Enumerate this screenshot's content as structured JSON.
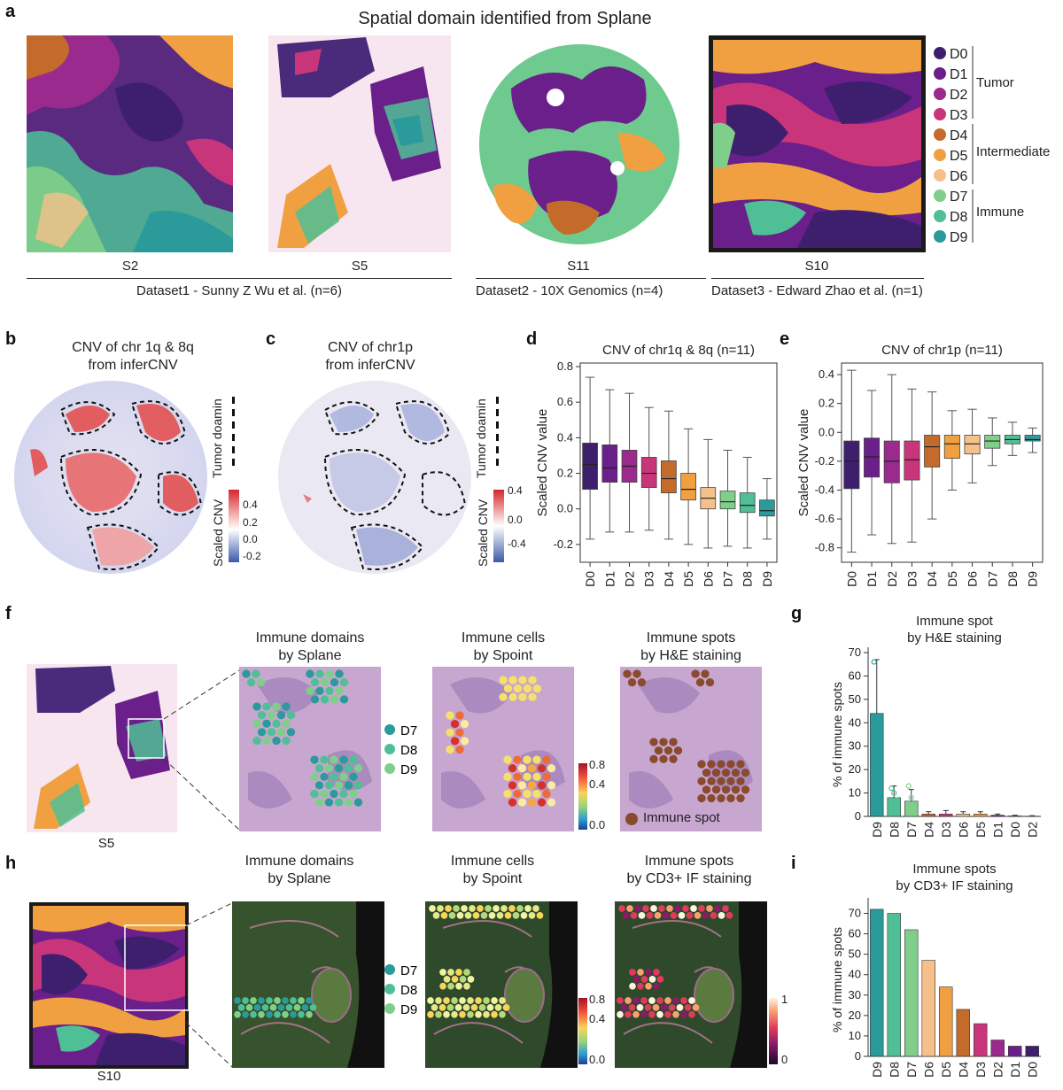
{
  "panel_a": {
    "letter": "a",
    "title": "Spatial domain identified from Splane",
    "samples": [
      "S2",
      "S5",
      "S11",
      "S10"
    ],
    "datasets": [
      "Dataset1 - Sunny Z Wu et al. (n=6)",
      "Dataset2 - 10X Genomics (n=4)",
      "Dataset3 - Edward Zhao et al. (n=1)"
    ],
    "legend": {
      "domains": [
        {
          "label": "D0",
          "color": "#3d1f6e"
        },
        {
          "label": "D1",
          "color": "#6a1f8a"
        },
        {
          "label": "D2",
          "color": "#9a2a8e"
        },
        {
          "label": "D3",
          "color": "#c9357a"
        },
        {
          "label": "D4",
          "color": "#c46a2a"
        },
        {
          "label": "D5",
          "color": "#f0a040"
        },
        {
          "label": "D6",
          "color": "#f6c08a"
        },
        {
          "label": "D7",
          "color": "#7fcf8a"
        },
        {
          "label": "D8",
          "color": "#4fbf95"
        },
        {
          "label": "D9",
          "color": "#2a9a9a"
        }
      ],
      "groups": [
        "Tumor",
        "Intermediate",
        "Immune"
      ]
    }
  },
  "panel_b": {
    "letter": "b",
    "title": "CNV of chr 1q & 8q\nfrom inferCNV",
    "tumor_label": "Tumor doamin",
    "scale_label": "Scaled CNV",
    "scale_ticks": [
      "0.4",
      "0.2",
      "0.0",
      "-0.2"
    ]
  },
  "panel_c": {
    "letter": "c",
    "title": "CNV of chr1p\nfrom inferCNV",
    "tumor_label": "Tumor doamin",
    "scale_label": "Scaled CNV",
    "scale_ticks": [
      "0.4",
      "0.0",
      "-0.4"
    ]
  },
  "panel_f": {
    "letter": "f",
    "sample": "S5",
    "subtitles": [
      "Immune domains\nby Splane",
      "Immune cells\nby Spoint",
      "Immune spots\nby H&E staining"
    ],
    "domain_legend": [
      "D7",
      "D8",
      "D9"
    ],
    "scale_ticks": [
      "0.8",
      "0.4",
      "0.0"
    ],
    "spot_legend": "Immune spot"
  },
  "panel_h": {
    "letter": "h",
    "sample": "S10",
    "subtitles": [
      "Immune domains\nby Splane",
      "Immune cells\nby Spoint",
      "Immune spots\nby CD3+ IF staining"
    ],
    "domain_legend": [
      "D7",
      "D8",
      "D9"
    ],
    "scale_ticks": [
      "0.8",
      "0.4",
      "0.0"
    ],
    "if_ticks": [
      "1",
      "0"
    ]
  },
  "colors": {
    "D0": "#3d1f6e",
    "D1": "#6a1f8a",
    "D2": "#9a2a8e",
    "D3": "#c9357a",
    "D4": "#c46a2a",
    "D5": "#f0a040",
    "D6": "#f6c08a",
    "D7": "#7fcf8a",
    "D8": "#4fbf95",
    "D9": "#2a9a9a"
  },
  "chart_data": [
    {
      "id": "d",
      "letter": "d",
      "type": "box",
      "title": "CNV of chr1q & 8q (n=11)",
      "ylabel": "Scaled CNV value",
      "categories": [
        "D0",
        "D1",
        "D2",
        "D3",
        "D4",
        "D5",
        "D6",
        "D7",
        "D8",
        "D9"
      ],
      "ylim": [
        -0.3,
        0.82
      ],
      "yticks": [
        -0.2,
        0.0,
        0.2,
        0.4,
        0.6,
        0.8
      ],
      "boxes": [
        {
          "min": -0.17,
          "q1": 0.11,
          "median": 0.25,
          "q3": 0.37,
          "max": 0.74
        },
        {
          "min": -0.13,
          "q1": 0.15,
          "median": 0.23,
          "q3": 0.36,
          "max": 0.67
        },
        {
          "min": -0.13,
          "q1": 0.15,
          "median": 0.24,
          "q3": 0.33,
          "max": 0.65
        },
        {
          "min": -0.12,
          "q1": 0.12,
          "median": 0.2,
          "q3": 0.29,
          "max": 0.57
        },
        {
          "min": -0.17,
          "q1": 0.09,
          "median": 0.17,
          "q3": 0.27,
          "max": 0.55
        },
        {
          "min": -0.2,
          "q1": 0.05,
          "median": 0.11,
          "q3": 0.2,
          "max": 0.45
        },
        {
          "min": -0.22,
          "q1": 0.0,
          "median": 0.06,
          "q3": 0.12,
          "max": 0.39
        },
        {
          "min": -0.21,
          "q1": 0.0,
          "median": 0.04,
          "q3": 0.1,
          "max": 0.33
        },
        {
          "min": -0.22,
          "q1": -0.02,
          "median": 0.02,
          "q3": 0.09,
          "max": 0.29
        },
        {
          "min": -0.17,
          "q1": -0.04,
          "median": -0.01,
          "q3": 0.05,
          "max": 0.17
        }
      ]
    },
    {
      "id": "e",
      "letter": "e",
      "type": "box",
      "title": "CNV of chr1p (n=11)",
      "ylabel": "Scaled CNV value",
      "categories": [
        "D0",
        "D1",
        "D2",
        "D3",
        "D4",
        "D5",
        "D6",
        "D7",
        "D8",
        "D9"
      ],
      "ylim": [
        -0.9,
        0.48
      ],
      "yticks": [
        -0.8,
        -0.6,
        -0.4,
        -0.2,
        0.0,
        0.2,
        0.4
      ],
      "boxes": [
        {
          "min": -0.83,
          "q1": -0.39,
          "median": -0.2,
          "q3": -0.06,
          "max": 0.43
        },
        {
          "min": -0.71,
          "q1": -0.31,
          "median": -0.17,
          "q3": -0.04,
          "max": 0.29
        },
        {
          "min": -0.77,
          "q1": -0.35,
          "median": -0.2,
          "q3": -0.06,
          "max": 0.4
        },
        {
          "min": -0.76,
          "q1": -0.33,
          "median": -0.19,
          "q3": -0.06,
          "max": 0.3
        },
        {
          "min": -0.6,
          "q1": -0.24,
          "median": -0.1,
          "q3": -0.02,
          "max": 0.28
        },
        {
          "min": -0.4,
          "q1": -0.18,
          "median": -0.08,
          "q3": -0.02,
          "max": 0.15
        },
        {
          "min": -0.35,
          "q1": -0.15,
          "median": -0.08,
          "q3": -0.02,
          "max": 0.16
        },
        {
          "min": -0.23,
          "q1": -0.11,
          "median": -0.06,
          "q3": -0.02,
          "max": 0.1
        },
        {
          "min": -0.16,
          "q1": -0.08,
          "median": -0.05,
          "q3": -0.02,
          "max": 0.07
        },
        {
          "min": -0.14,
          "q1": -0.06,
          "median": -0.05,
          "q3": -0.02,
          "max": 0.03
        }
      ]
    },
    {
      "id": "g",
      "letter": "g",
      "type": "bar",
      "title": "Immune spot\nby H&E staining",
      "ylabel": "% of immune spots",
      "categories": [
        "D9",
        "D8",
        "D7",
        "D4",
        "D3",
        "D6",
        "D5",
        "D1",
        "D0",
        "D2"
      ],
      "values": [
        44,
        8,
        6.5,
        1,
        1,
        1,
        1,
        0.5,
        0.2,
        0.1
      ],
      "errors": [
        23,
        5,
        5,
        1,
        1.5,
        1,
        1,
        0.5,
        0.3,
        0.2
      ],
      "ylim": [
        0,
        70
      ],
      "yticks": [
        0,
        10,
        20,
        30,
        40,
        50,
        60,
        70
      ]
    },
    {
      "id": "i",
      "letter": "i",
      "type": "bar",
      "title": "Immune spots\nby CD3+ IF staining",
      "ylabel": "% of immune spots",
      "categories": [
        "D9",
        "D8",
        "D7",
        "D6",
        "D5",
        "D4",
        "D3",
        "D2",
        "D1",
        "D0"
      ],
      "values": [
        72,
        70,
        62,
        47,
        34,
        23,
        16,
        8,
        5,
        5
      ],
      "ylim": [
        0,
        75
      ],
      "yticks": [
        0,
        10,
        20,
        30,
        40,
        50,
        60,
        70
      ]
    }
  ]
}
